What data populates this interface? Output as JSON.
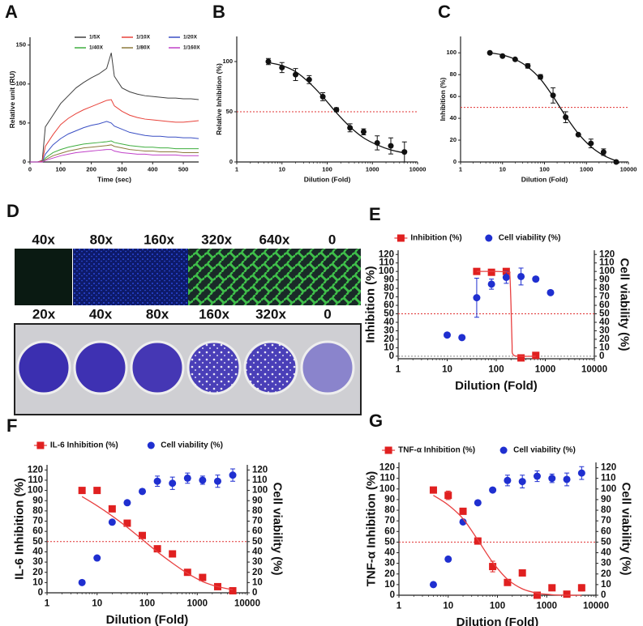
{
  "chart_data": [
    {
      "panel": "A",
      "type": "line",
      "xlabel": "Time (sec)",
      "ylabel": "Relative unit (RU)",
      "x": [
        0,
        25,
        40,
        50,
        75,
        100,
        125,
        150,
        175,
        200,
        225,
        250,
        265,
        275,
        300,
        325,
        350,
        375,
        400,
        425,
        450,
        475,
        500,
        525,
        550
      ],
      "xlim": [
        0,
        550
      ],
      "xticks": [
        0,
        100,
        200,
        300,
        400,
        500
      ],
      "ylim": [
        0,
        160
      ],
      "yticks": [
        0,
        50,
        100,
        150
      ],
      "series": [
        {
          "name": "1/5X",
          "color": "#404040",
          "values": [
            0,
            0,
            2,
            45,
            60,
            75,
            85,
            95,
            102,
            108,
            113,
            120,
            140,
            110,
            95,
            90,
            87,
            85,
            84,
            83,
            82,
            82,
            81,
            81,
            80
          ]
        },
        {
          "name": "1/10X",
          "color": "#e8423a",
          "values": [
            0,
            0,
            1,
            20,
            35,
            48,
            56,
            62,
            67,
            71,
            75,
            79,
            80,
            72,
            65,
            60,
            57,
            55,
            54,
            53,
            52,
            51,
            51,
            52,
            53
          ]
        },
        {
          "name": "1/20X",
          "color": "#3a4fc4",
          "values": [
            0,
            0,
            0,
            10,
            22,
            30,
            36,
            40,
            44,
            47,
            49,
            52,
            50,
            46,
            42,
            38,
            36,
            34,
            33,
            33,
            32,
            32,
            31,
            31,
            30
          ]
        },
        {
          "name": "1/40X",
          "color": "#3fae3f",
          "values": [
            0,
            0,
            0,
            5,
            12,
            16,
            19,
            21,
            23,
            24,
            25,
            26,
            27,
            25,
            23,
            21,
            20,
            19,
            19,
            18,
            18,
            17,
            17,
            17,
            17
          ]
        },
        {
          "name": "1/80X",
          "color": "#8c7a3c",
          "values": [
            0,
            0,
            0,
            3,
            8,
            11,
            14,
            16,
            18,
            19,
            20,
            21,
            22,
            20,
            18,
            16,
            15,
            14,
            14,
            13,
            13,
            13,
            12,
            12,
            12
          ]
        },
        {
          "name": "1/160X",
          "color": "#c040c8",
          "values": [
            0,
            0,
            0,
            2,
            5,
            8,
            10,
            12,
            13,
            14,
            15,
            16,
            16,
            14,
            12,
            11,
            10,
            10,
            9,
            9,
            9,
            9,
            8,
            8,
            8
          ]
        }
      ]
    },
    {
      "panel": "B",
      "type": "scatter",
      "xscale": "log",
      "xlabel": "Dilution (Fold)",
      "ylabel": "Relative Inhibition (%)",
      "xlim": [
        1,
        10000
      ],
      "xticks": [
        1,
        10,
        100,
        1000,
        10000
      ],
      "ylim": [
        0,
        125
      ],
      "yticks": [
        0,
        50,
        100
      ],
      "reference_lines": [
        {
          "value": 50,
          "color": "#e03030"
        }
      ],
      "series": [
        {
          "color": "#111111",
          "marker": "circle",
          "x": [
            5,
            10,
            20,
            40,
            80,
            160,
            320,
            640,
            1280,
            2560,
            5120
          ],
          "values": [
            100,
            94,
            87,
            82,
            65,
            52,
            34,
            30,
            19,
            16,
            10
          ],
          "errors": [
            3,
            5,
            6,
            4,
            4,
            2,
            4,
            3,
            7,
            8,
            10
          ]
        },
        {
          "type": "fit",
          "color": "#111111",
          "x": [
            5,
            10,
            20,
            40,
            80,
            160,
            320,
            640,
            1280,
            2560,
            5120
          ],
          "values": [
            99,
            96,
            90,
            79,
            65,
            49,
            35,
            24,
            17,
            12,
            9
          ]
        }
      ]
    },
    {
      "panel": "C",
      "type": "scatter",
      "xscale": "log",
      "xlabel": "Dilution (Fold)",
      "ylabel": "Inhibition (%)",
      "xlim": [
        1,
        10000
      ],
      "xticks": [
        1,
        10,
        100,
        1000,
        10000
      ],
      "ylim": [
        0,
        115
      ],
      "yticks": [
        0,
        20,
        40,
        60,
        80,
        100
      ],
      "reference_lines": [
        {
          "value": 50,
          "color": "#e03030"
        }
      ],
      "series": [
        {
          "color": "#111111",
          "marker": "circle",
          "x": [
            5,
            10,
            20,
            40,
            80,
            160,
            320,
            640,
            1280,
            2560,
            5120
          ],
          "values": [
            100,
            97,
            94,
            88,
            78,
            61,
            41,
            25,
            17,
            9,
            0
          ],
          "errors": [
            0,
            0,
            0,
            2,
            2,
            7,
            5,
            0,
            4,
            3,
            0
          ]
        },
        {
          "type": "fit",
          "color": "#111111",
          "x": [
            5,
            10,
            20,
            40,
            80,
            160,
            320,
            640,
            1280,
            2560,
            5120
          ],
          "values": [
            100,
            98,
            94,
            87,
            76,
            60,
            42,
            26,
            14,
            6,
            1
          ]
        }
      ]
    },
    {
      "panel": "E",
      "type": "scatter",
      "xscale": "log",
      "xlabel": "Dilution (Fold)",
      "ylabel": "Inhibition (%)",
      "y2label": "Cell viability (%)",
      "xlim": [
        1,
        10000
      ],
      "xticks": [
        1,
        10,
        100,
        1000,
        10000
      ],
      "ylim": [
        -3,
        125
      ],
      "yticks": [
        0,
        10,
        20,
        30,
        40,
        50,
        60,
        70,
        80,
        90,
        100,
        110,
        120
      ],
      "y2lim": [
        -3,
        125
      ],
      "y2ticks": [
        0,
        10,
        20,
        30,
        40,
        50,
        60,
        70,
        80,
        90,
        100,
        110,
        120
      ],
      "reference_lines": [
        {
          "value": 50,
          "color": "#e03030"
        },
        {
          "value": 0,
          "color": "#888888"
        }
      ],
      "series": [
        {
          "name": "Inhibition (%)",
          "color": "#e02020",
          "marker": "square",
          "x": [
            40,
            80,
            160,
            320,
            640
          ],
          "values": [
            100,
            99,
            100,
            -2,
            1
          ]
        },
        {
          "name": "Cell viability (%)",
          "color": "#1f2fd0",
          "marker": "circle",
          "axis": "y2",
          "x": [
            10,
            20,
            40,
            80,
            160,
            320,
            640,
            1280
          ],
          "values": [
            25,
            22,
            69,
            85,
            93,
            94,
            91,
            75
          ],
          "errors": [
            2,
            0,
            23,
            6,
            7,
            10,
            3,
            0
          ]
        },
        {
          "type": "fit",
          "color": "#e84040",
          "x": [
            40,
            100,
            180,
            190,
            200,
            210,
            220,
            320,
            640
          ],
          "values": [
            100,
            100,
            99,
            95,
            60,
            15,
            2,
            0,
            0
          ]
        }
      ]
    },
    {
      "panel": "F",
      "type": "scatter",
      "xscale": "log",
      "xlabel": "Dilution (Fold)",
      "ylabel": "IL-6 Inhibition (%)",
      "y2label": "Cell viability (%)",
      "xlim": [
        1,
        10000
      ],
      "xticks": [
        1,
        10,
        100,
        1000,
        10000
      ],
      "ylim": [
        0,
        125
      ],
      "yticks": [
        0,
        10,
        20,
        30,
        40,
        50,
        60,
        70,
        80,
        90,
        100,
        110,
        120
      ],
      "y2lim": [
        0,
        125
      ],
      "y2ticks": [
        0,
        10,
        20,
        30,
        40,
        50,
        60,
        70,
        80,
        90,
        100,
        110,
        120
      ],
      "reference_lines": [
        {
          "value": 50,
          "color": "#e03030"
        }
      ],
      "series": [
        {
          "name": "IL-6 Inhibition (%)",
          "color": "#e02020",
          "marker": "square",
          "x": [
            5,
            10,
            20,
            40,
            80,
            160,
            320,
            640,
            1280,
            2560,
            5120
          ],
          "values": [
            100,
            100,
            82,
            68,
            56,
            43,
            38,
            20,
            15,
            6,
            2
          ]
        },
        {
          "name": "Cell viability (%)",
          "color": "#1f2fd0",
          "marker": "circle",
          "axis": "y2",
          "x": [
            5,
            10,
            20,
            40,
            80,
            160,
            320,
            640,
            1280,
            2560,
            5120
          ],
          "values": [
            10,
            34,
            69,
            88,
            99,
            109,
            107,
            112,
            110,
            109,
            115
          ],
          "errors": [
            0,
            0,
            0,
            0,
            0,
            5,
            6,
            5,
            4,
            6,
            6
          ]
        },
        {
          "type": "fit",
          "color": "#e84040",
          "x": [
            5,
            10,
            20,
            40,
            80,
            160,
            320,
            640,
            1280,
            2560,
            5120
          ],
          "values": [
            94,
            85,
            75,
            64,
            52,
            40,
            29,
            19,
            11,
            6,
            3
          ]
        }
      ]
    },
    {
      "panel": "G",
      "type": "scatter",
      "xscale": "log",
      "xlabel": "Dilution (Fold)",
      "ylabel": "TNF-α Inhibition (%)",
      "y2label": "Cell viability (%)",
      "xlim": [
        1,
        10000
      ],
      "xticks": [
        1,
        10,
        100,
        1000,
        10000
      ],
      "ylim": [
        0,
        125
      ],
      "yticks": [
        0,
        10,
        20,
        30,
        40,
        50,
        60,
        70,
        80,
        90,
        100,
        110,
        120
      ],
      "y2lim": [
        0,
        125
      ],
      "y2ticks": [
        0,
        10,
        20,
        30,
        40,
        50,
        60,
        70,
        80,
        90,
        100,
        110,
        120
      ],
      "reference_lines": [
        {
          "value": 50,
          "color": "#e03030"
        }
      ],
      "series": [
        {
          "name": "TNF-α Inhibition (%)",
          "color": "#e02020",
          "marker": "square",
          "x": [
            5,
            10,
            20,
            40,
            80,
            160,
            320,
            640,
            1280,
            2560,
            5120
          ],
          "values": [
            99,
            94,
            79,
            51,
            27,
            12,
            21,
            0,
            7,
            1,
            7
          ],
          "errors": [
            2,
            4,
            2,
            3,
            5,
            2,
            0,
            0,
            0,
            0,
            3
          ]
        },
        {
          "name": "Cell viability (%)",
          "color": "#1f2fd0",
          "marker": "circle",
          "axis": "y2",
          "x": [
            5,
            10,
            20,
            40,
            80,
            160,
            320,
            640,
            1280,
            2560,
            5120
          ],
          "values": [
            10,
            34,
            69,
            87,
            99,
            108,
            107,
            112,
            110,
            109,
            115
          ],
          "errors": [
            0,
            0,
            0,
            0,
            0,
            5,
            6,
            5,
            4,
            6,
            6
          ]
        },
        {
          "type": "fit",
          "color": "#e84040",
          "x": [
            5,
            10,
            20,
            40,
            80,
            160,
            320,
            640,
            1280,
            2560,
            5120
          ],
          "values": [
            94,
            85,
            72,
            52,
            31,
            15,
            6,
            2,
            0.5,
            0,
            0
          ]
        }
      ]
    }
  ],
  "panel_d": {
    "letter": "D",
    "top_row_labels": [
      "40x",
      "80x",
      "160x",
      "320x",
      "640x",
      "0"
    ],
    "bottom_row_labels": [
      "20x",
      "40x",
      "80x",
      "160x",
      "320x",
      "0"
    ]
  }
}
